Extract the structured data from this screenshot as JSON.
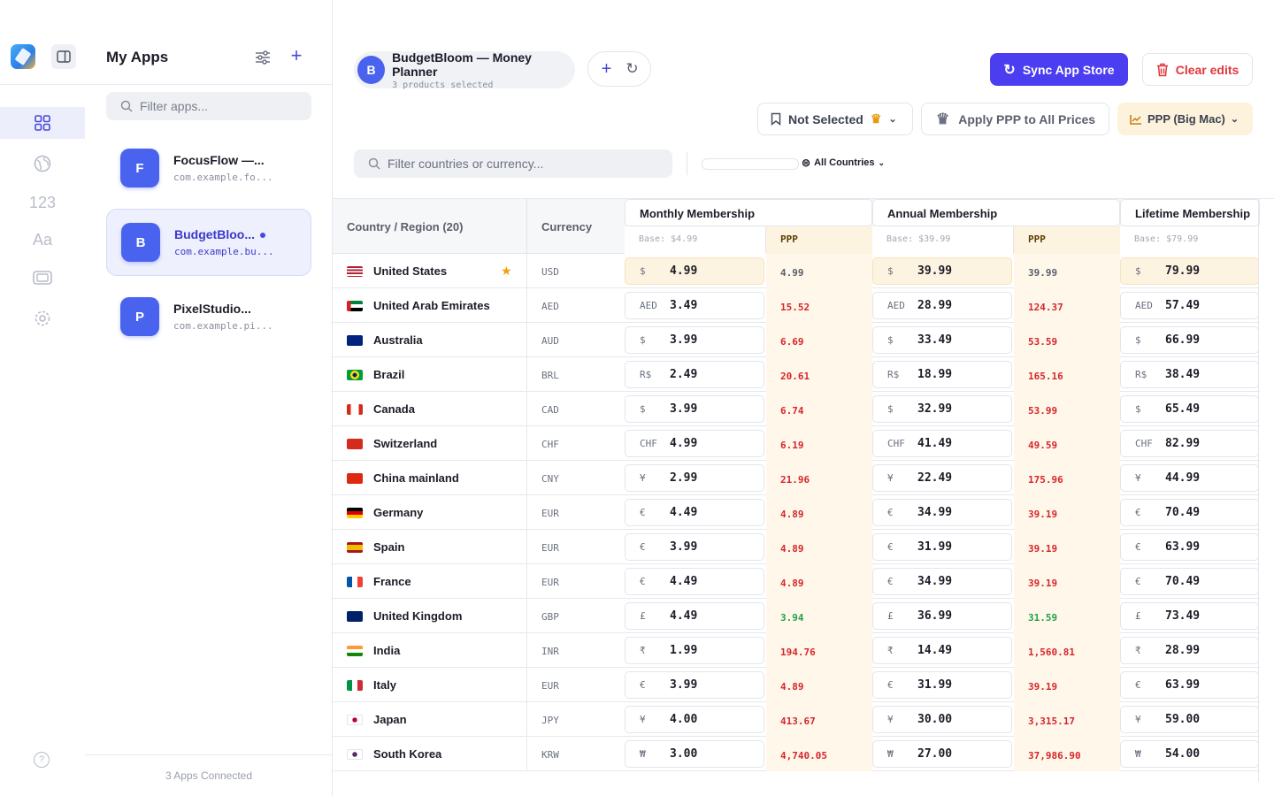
{
  "sidebar": {
    "apps_title": "My Apps",
    "search_placeholder": "Filter apps...",
    "apps": [
      {
        "initial": "F",
        "name": "FocusFlow —...",
        "bundle": "com.example.fo..."
      },
      {
        "initial": "B",
        "name": "BudgetBloo...",
        "bundle": "com.example.bu..."
      },
      {
        "initial": "P",
        "name": "PixelStudio...",
        "bundle": "com.example.pi..."
      }
    ],
    "footer": "3 Apps Connected",
    "rail_numbers_label": "123",
    "rail_text_label": "Aa"
  },
  "header": {
    "app_initial": "B",
    "app_name": "BudgetBloom — Money Planner",
    "app_sub": "3 products selected",
    "sync_label": "Sync App Store",
    "clear_label": "Clear edits",
    "not_selected_label": "Not Selected",
    "apply_label": "Apply PPP to All Prices",
    "ppp_label": "PPP (Big Mac)"
  },
  "filters": {
    "country_placeholder": "Filter countries or currency...",
    "all_countries": "All Countries"
  },
  "table": {
    "col_country": "Country / Region (20)",
    "col_currency": "Currency",
    "groups": [
      {
        "title": "Monthly Membership",
        "base": "Base: $4.99",
        "ppp": "PPP"
      },
      {
        "title": "Annual Membership",
        "base": "Base: $39.99",
        "ppp": "PPP"
      },
      {
        "title": "Lifetime Membership",
        "base": "Base: $79.99",
        "ppp": "PPP"
      }
    ],
    "rows": [
      {
        "flag": "us",
        "country": "United States",
        "currency": "USD",
        "star": "★",
        "monthly": {
          "sym": "$",
          "val": "4.99",
          "ppp": "4.99",
          "tone": "neutral"
        },
        "annual": {
          "sym": "$",
          "val": "39.99",
          "ppp": "39.99",
          "tone": "neutral"
        },
        "lifetime": {
          "sym": "$",
          "val": "79.99"
        }
      },
      {
        "flag": "ae",
        "country": "United Arab Emirates",
        "currency": "AED",
        "monthly": {
          "sym": "AED",
          "val": "3.49",
          "ppp": "15.52",
          "tone": "red"
        },
        "annual": {
          "sym": "AED",
          "val": "28.99",
          "ppp": "124.37",
          "tone": "red"
        },
        "lifetime": {
          "sym": "AED",
          "val": "57.49"
        }
      },
      {
        "flag": "au",
        "country": "Australia",
        "currency": "AUD",
        "monthly": {
          "sym": "$",
          "val": "3.99",
          "ppp": "6.69",
          "tone": "red"
        },
        "annual": {
          "sym": "$",
          "val": "33.49",
          "ppp": "53.59",
          "tone": "red"
        },
        "lifetime": {
          "sym": "$",
          "val": "66.99"
        }
      },
      {
        "flag": "br",
        "country": "Brazil",
        "currency": "BRL",
        "monthly": {
          "sym": "R$",
          "val": "2.49",
          "ppp": "20.61",
          "tone": "red"
        },
        "annual": {
          "sym": "R$",
          "val": "18.99",
          "ppp": "165.16",
          "tone": "red"
        },
        "lifetime": {
          "sym": "R$",
          "val": "38.49"
        }
      },
      {
        "flag": "ca",
        "country": "Canada",
        "currency": "CAD",
        "monthly": {
          "sym": "$",
          "val": "3.99",
          "ppp": "6.74",
          "tone": "red"
        },
        "annual": {
          "sym": "$",
          "val": "32.99",
          "ppp": "53.99",
          "tone": "red"
        },
        "lifetime": {
          "sym": "$",
          "val": "65.49"
        }
      },
      {
        "flag": "ch",
        "country": "Switzerland",
        "currency": "CHF",
        "monthly": {
          "sym": "CHF",
          "val": "4.99",
          "ppp": "6.19",
          "tone": "red"
        },
        "annual": {
          "sym": "CHF",
          "val": "41.49",
          "ppp": "49.59",
          "tone": "red"
        },
        "lifetime": {
          "sym": "CHF",
          "val": "82.99"
        }
      },
      {
        "flag": "cn",
        "country": "China mainland",
        "currency": "CNY",
        "monthly": {
          "sym": "¥",
          "val": "2.99",
          "ppp": "21.96",
          "tone": "red"
        },
        "annual": {
          "sym": "¥",
          "val": "22.49",
          "ppp": "175.96",
          "tone": "red"
        },
        "lifetime": {
          "sym": "¥",
          "val": "44.99"
        }
      },
      {
        "flag": "de",
        "country": "Germany",
        "currency": "EUR",
        "monthly": {
          "sym": "€",
          "val": "4.49",
          "ppp": "4.89",
          "tone": "red"
        },
        "annual": {
          "sym": "€",
          "val": "34.99",
          "ppp": "39.19",
          "tone": "red"
        },
        "lifetime": {
          "sym": "€",
          "val": "70.49"
        }
      },
      {
        "flag": "es",
        "country": "Spain",
        "currency": "EUR",
        "monthly": {
          "sym": "€",
          "val": "3.99",
          "ppp": "4.89",
          "tone": "red"
        },
        "annual": {
          "sym": "€",
          "val": "31.99",
          "ppp": "39.19",
          "tone": "red"
        },
        "lifetime": {
          "sym": "€",
          "val": "63.99"
        }
      },
      {
        "flag": "fr",
        "country": "France",
        "currency": "EUR",
        "monthly": {
          "sym": "€",
          "val": "4.49",
          "ppp": "4.89",
          "tone": "red"
        },
        "annual": {
          "sym": "€",
          "val": "34.99",
          "ppp": "39.19",
          "tone": "red"
        },
        "lifetime": {
          "sym": "€",
          "val": "70.49"
        }
      },
      {
        "flag": "gb",
        "country": "United Kingdom",
        "currency": "GBP",
        "monthly": {
          "sym": "£",
          "val": "4.49",
          "ppp": "3.94",
          "tone": "green"
        },
        "annual": {
          "sym": "£",
          "val": "36.99",
          "ppp": "31.59",
          "tone": "green"
        },
        "lifetime": {
          "sym": "£",
          "val": "73.49"
        }
      },
      {
        "flag": "in",
        "country": "India",
        "currency": "INR",
        "monthly": {
          "sym": "₹",
          "val": "1.99",
          "ppp": "194.76",
          "tone": "red"
        },
        "annual": {
          "sym": "₹",
          "val": "14.49",
          "ppp": "1,560.81",
          "tone": "red"
        },
        "lifetime": {
          "sym": "₹",
          "val": "28.99"
        }
      },
      {
        "flag": "it",
        "country": "Italy",
        "currency": "EUR",
        "monthly": {
          "sym": "€",
          "val": "3.99",
          "ppp": "4.89",
          "tone": "red"
        },
        "annual": {
          "sym": "€",
          "val": "31.99",
          "ppp": "39.19",
          "tone": "red"
        },
        "lifetime": {
          "sym": "€",
          "val": "63.99"
        }
      },
      {
        "flag": "jp",
        "country": "Japan",
        "currency": "JPY",
        "monthly": {
          "sym": "¥",
          "val": "4.00",
          "ppp": "413.67",
          "tone": "red"
        },
        "annual": {
          "sym": "¥",
          "val": "30.00",
          "ppp": "3,315.17",
          "tone": "red"
        },
        "lifetime": {
          "sym": "¥",
          "val": "59.00"
        }
      },
      {
        "flag": "kr",
        "country": "South Korea",
        "currency": "KRW",
        "monthly": {
          "sym": "₩",
          "val": "3.00",
          "ppp": "4,740.05",
          "tone": "red"
        },
        "annual": {
          "sym": "₩",
          "val": "27.00",
          "ppp": "37,986.90",
          "tone": "red"
        },
        "lifetime": {
          "sym": "₩",
          "val": "54.00"
        }
      }
    ]
  },
  "colors": {
    "accent": "#4b3df0",
    "danger": "#e0373d",
    "ppp_bg": "#fdf3e1",
    "ppp_up": "#d7262b",
    "ppp_down": "#20a24b"
  }
}
